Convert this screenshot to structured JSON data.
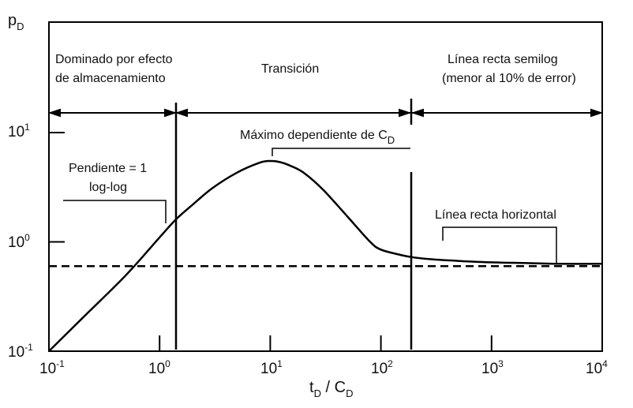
{
  "axes": {
    "y_symbol": "p",
    "y_symbol_sub": "D",
    "x_title_a": "t",
    "x_title_a_sub": "D",
    "x_title_sep": " / C",
    "x_title_b_sub": "D"
  },
  "x_ticks": [
    {
      "base": "10",
      "exp": "-1"
    },
    {
      "base": "10",
      "exp": "0"
    },
    {
      "base": "10",
      "exp": "1"
    },
    {
      "base": "10",
      "exp": "2"
    },
    {
      "base": "10",
      "exp": "3"
    },
    {
      "base": "10",
      "exp": "4"
    }
  ],
  "y_ticks": [
    {
      "base": "10",
      "exp": "-1"
    },
    {
      "base": "10",
      "exp": "0"
    },
    {
      "base": "10",
      "exp": "1"
    }
  ],
  "regions": {
    "storage_line1": "Dominado por efecto",
    "storage_line2": "de almacenamiento",
    "transition": "Transición",
    "semilog_line1": "Línea recta semilog",
    "semilog_line2": "(menor al 10% de error)"
  },
  "annotations": {
    "slope_line1": "Pendiente = 1",
    "slope_line2": "log-log",
    "max_text": "Máximo dependiente de  C",
    "max_sub": "D",
    "horizontal": "Línea recta horizontal"
  },
  "chart_data": {
    "type": "line",
    "x_scale": "log",
    "y_scale": "log",
    "xlim": [
      0.1,
      10000
    ],
    "ylim": [
      0.1,
      30
    ],
    "grid": false,
    "series": [
      {
        "style": "solid",
        "x": [
          0.1,
          0.2,
          0.5,
          1,
          1.4,
          2,
          3,
          5,
          8,
          10,
          12,
          15,
          20,
          30,
          50,
          80,
          100,
          150,
          200,
          300,
          500,
          1000,
          2000,
          4000,
          10000
        ],
        "y": [
          0.1,
          0.2,
          0.5,
          1.1,
          1.6,
          2.2,
          3.1,
          4.3,
          5.3,
          5.5,
          5.4,
          5.0,
          4.3,
          3.0,
          1.7,
          1.0,
          0.85,
          0.76,
          0.72,
          0.69,
          0.67,
          0.65,
          0.64,
          0.63,
          0.63
        ]
      },
      {
        "style": "dashed",
        "x": [
          0.1,
          10000
        ],
        "y": [
          0.6,
          0.6
        ]
      }
    ],
    "boundaries_x": [
      1.4,
      200
    ]
  }
}
